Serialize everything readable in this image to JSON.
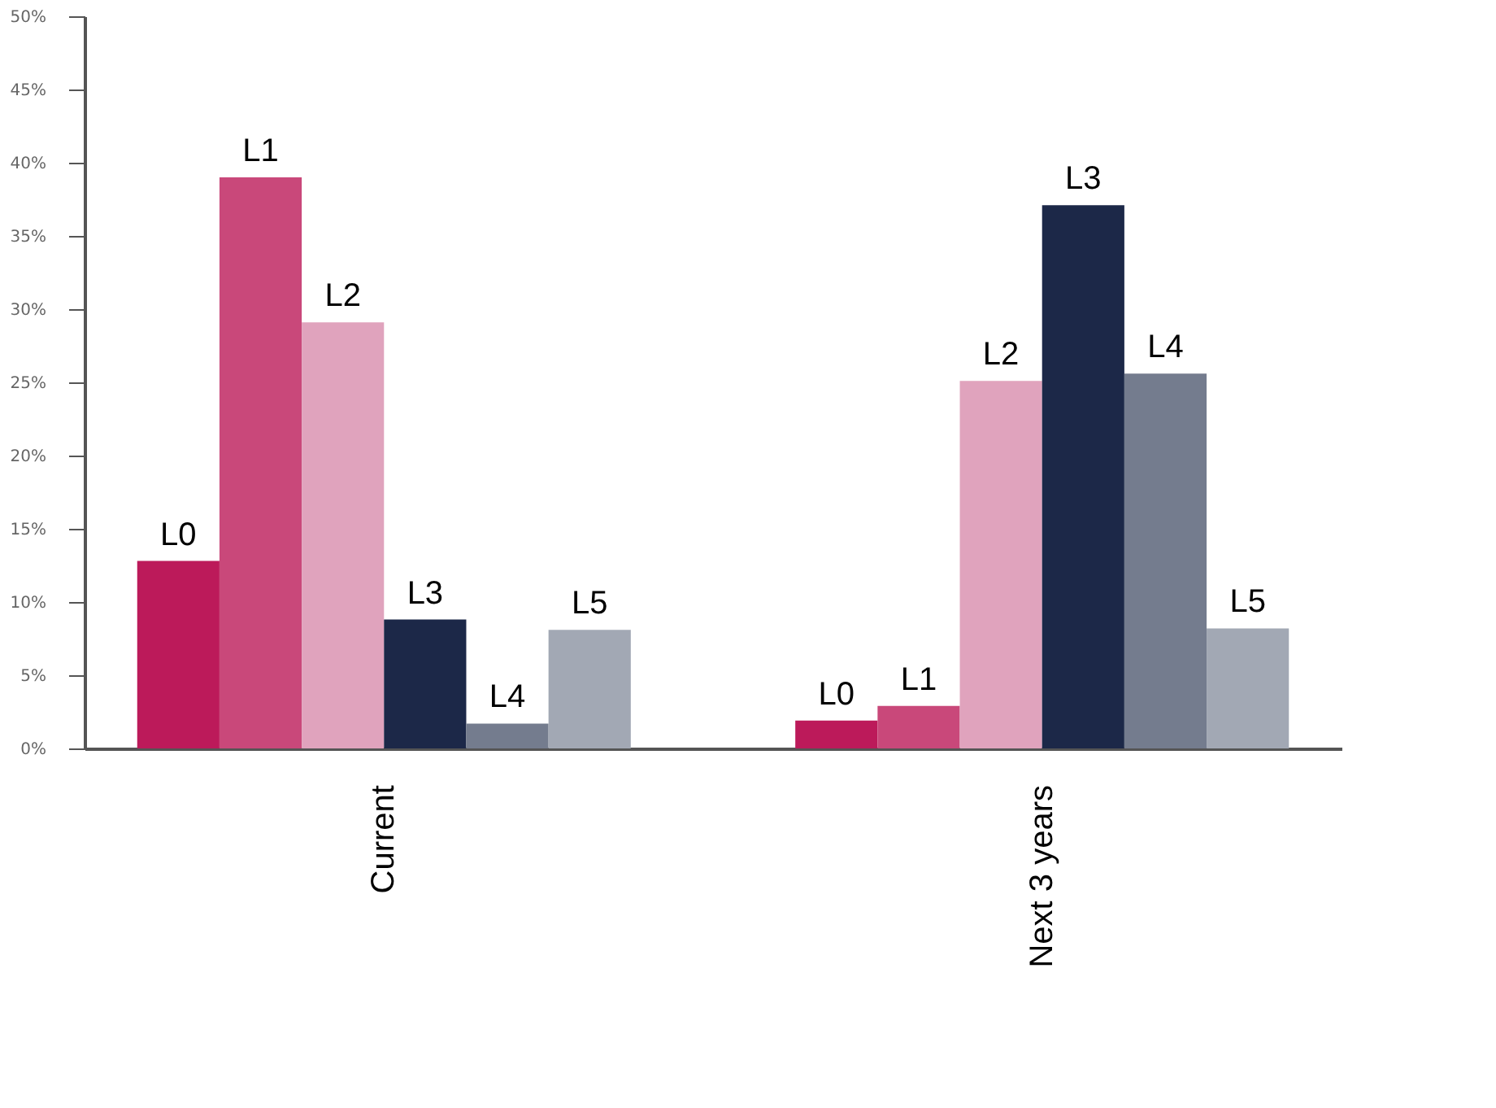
{
  "chart_data": {
    "type": "bar",
    "categories": [
      "Current",
      "Next 3 years"
    ],
    "series": [
      {
        "name": "L0",
        "color": "#bc1a5a",
        "values": [
          12.8,
          1.9
        ]
      },
      {
        "name": "L1",
        "color": "#c9487a",
        "values": [
          39.0,
          2.9
        ]
      },
      {
        "name": "L2",
        "color": "#e0a3bd",
        "values": [
          29.1,
          25.1
        ]
      },
      {
        "name": "L3",
        "color": "#1c2848",
        "values": [
          8.8,
          37.1
        ]
      },
      {
        "name": "L4",
        "color": "#747c8e",
        "values": [
          1.7,
          25.6
        ]
      },
      {
        "name": "L5",
        "color": "#a2a8b4",
        "values": [
          8.1,
          8.2
        ]
      }
    ],
    "ylim": [
      0,
      50
    ],
    "yticks": [
      {
        "value": 0,
        "label": "0%"
      },
      {
        "value": 5,
        "label": "5%"
      },
      {
        "value": 10,
        "label": "10%"
      },
      {
        "value": 15,
        "label": "15%"
      },
      {
        "value": 20,
        "label": "20%"
      },
      {
        "value": 25,
        "label": "25%"
      },
      {
        "value": 30,
        "label": "30%"
      },
      {
        "value": 35,
        "label": "35%"
      },
      {
        "value": 40,
        "label": "40%"
      },
      {
        "value": 45,
        "label": "45%"
      },
      {
        "value": 50,
        "label": "50%"
      }
    ],
    "grid": false,
    "legend": false
  }
}
